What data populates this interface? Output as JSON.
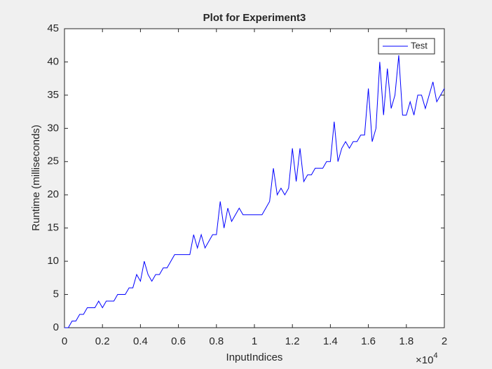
{
  "chart_data": {
    "type": "line",
    "title": "Plot for Experiment3",
    "x_label": "InputIndices",
    "y_label": "Runtime (milliseconds)",
    "x_exponent": {
      "base": "×10",
      "power": "4"
    },
    "x": [
      0,
      200,
      400,
      600,
      800,
      1000,
      1200,
      1400,
      1600,
      1800,
      2000,
      2200,
      2400,
      2600,
      2800,
      3000,
      3200,
      3400,
      3600,
      3800,
      4000,
      4200,
      4400,
      4600,
      4800,
      5000,
      5200,
      5400,
      5600,
      5800,
      6000,
      6200,
      6400,
      6600,
      6800,
      7000,
      7200,
      7400,
      7600,
      7800,
      8000,
      8200,
      8400,
      8600,
      8800,
      9000,
      9200,
      9400,
      9600,
      9800,
      10000,
      10200,
      10400,
      10600,
      10800,
      11000,
      11200,
      11400,
      11600,
      11800,
      12000,
      12200,
      12400,
      12600,
      12800,
      13000,
      13200,
      13400,
      13600,
      13800,
      14000,
      14200,
      14400,
      14600,
      14800,
      15000,
      15200,
      15400,
      15600,
      15800,
      16000,
      16200,
      16400,
      16600,
      16800,
      17000,
      17200,
      17400,
      17600,
      17800,
      18000,
      18200,
      18400,
      18600,
      18800,
      19000,
      19200,
      19400,
      19600,
      19800,
      20000
    ],
    "series": [
      {
        "name": "Test",
        "color": "#0000ff",
        "values": [
          0,
          0,
          1,
          1,
          2,
          2,
          3,
          3,
          3,
          4,
          3,
          4,
          4,
          4,
          5,
          5,
          5,
          6,
          6,
          8,
          7,
          10,
          8,
          7,
          8,
          8,
          9,
          9,
          10,
          11,
          11,
          11,
          11,
          11,
          14,
          12,
          14,
          12,
          13,
          14,
          14,
          19,
          15,
          18,
          16,
          17,
          18,
          17,
          17,
          17,
          17,
          17,
          17,
          18,
          19,
          24,
          20,
          21,
          20,
          21,
          27,
          22,
          27,
          22,
          23,
          23,
          24,
          24,
          24,
          25,
          25,
          31,
          25,
          27,
          28,
          27,
          28,
          28,
          29,
          29,
          36,
          28,
          30,
          40,
          32,
          39,
          33,
          35,
          41,
          32,
          32,
          34,
          32,
          35,
          35,
          33,
          35,
          37,
          34,
          35,
          36
        ]
      }
    ],
    "xlim": [
      0,
      20000
    ],
    "ylim": [
      0,
      45
    ],
    "xticks": [
      0,
      {
        "value": 2000,
        "label": "0.2"
      },
      {
        "value": 4000,
        "label": "0.4"
      },
      {
        "value": 6000,
        "label": "0.6"
      },
      {
        "value": 8000,
        "label": "0.8"
      },
      {
        "value": 10000,
        "label": "1"
      },
      {
        "value": 12000,
        "label": "1.2"
      },
      {
        "value": 14000,
        "label": "1.4"
      },
      {
        "value": 16000,
        "label": "1.6"
      },
      {
        "value": 18000,
        "label": "1.8"
      },
      {
        "value": 20000,
        "label": "2"
      }
    ],
    "yticks": [
      0,
      5,
      10,
      15,
      20,
      25,
      30,
      35,
      40,
      45
    ],
    "grid": false,
    "legend": "top-right"
  }
}
